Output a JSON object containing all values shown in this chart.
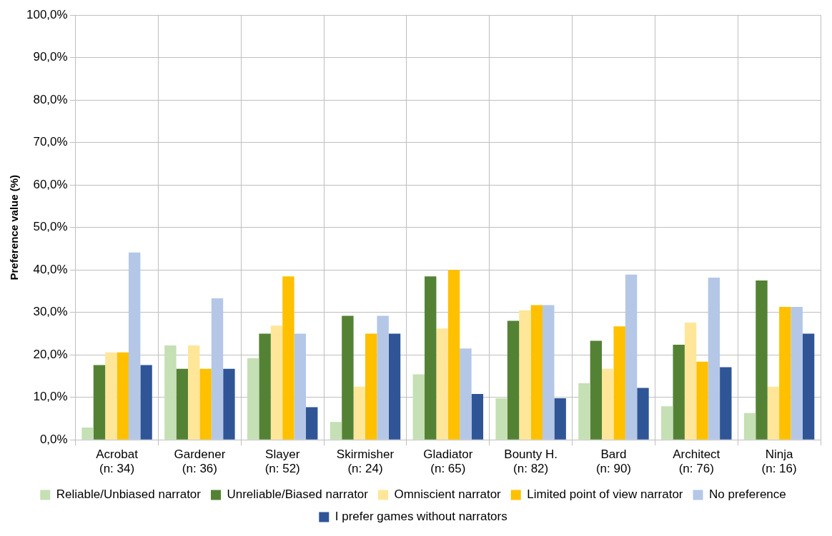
{
  "chart_data": {
    "type": "bar",
    "ylabel": "Preference value (%)",
    "categories": [
      "Acrobat\n(n: 34)",
      "Gardener\n(n: 36)",
      "Slayer\n(n: 52)",
      "Skirmisher\n(n: 24)",
      "Gladiator\n(n: 65)",
      "Bounty H.\n(n: 82)",
      "Bard\n(n: 90)",
      "Architect\n(n: 76)",
      "Ninja\n(n: 16)"
    ],
    "series": [
      {
        "name": "Reliable/Unbiased narrator",
        "color": "#c5e0b4",
        "values": [
          2.9,
          22.2,
          19.2,
          4.2,
          15.4,
          9.8,
          13.3,
          7.9,
          6.3
        ]
      },
      {
        "name": "Unreliable/Biased narrator",
        "color": "#548235",
        "values": [
          17.6,
          16.7,
          25.0,
          29.2,
          38.5,
          28.0,
          23.3,
          22.4,
          37.5
        ]
      },
      {
        "name": "Omniscient narrator",
        "color": "#ffe699",
        "values": [
          20.6,
          22.2,
          26.9,
          12.5,
          26.2,
          30.5,
          16.7,
          27.6,
          12.5
        ]
      },
      {
        "name": "Limited point of view narrator",
        "color": "#ffc000",
        "values": [
          20.6,
          16.7,
          38.5,
          25.0,
          40.0,
          31.7,
          26.7,
          18.4,
          31.3
        ]
      },
      {
        "name": "No preference",
        "color": "#b4c7e7",
        "values": [
          44.1,
          33.3,
          25.0,
          29.2,
          21.5,
          31.7,
          38.9,
          38.2,
          31.3
        ]
      },
      {
        "name": "I prefer games without narrators",
        "color": "#2f5597",
        "values": [
          17.6,
          16.7,
          7.7,
          25.0,
          10.8,
          9.8,
          12.2,
          17.1,
          25.0
        ]
      }
    ],
    "ylim": [
      0,
      100
    ],
    "yticks": [
      {
        "value": 0,
        "label": "0,0%"
      },
      {
        "value": 10,
        "label": "10,0%"
      },
      {
        "value": 20,
        "label": "20,0%"
      },
      {
        "value": 30,
        "label": "30,0%"
      },
      {
        "value": 40,
        "label": "40,0%"
      },
      {
        "value": 50,
        "label": "50,0%"
      },
      {
        "value": 60,
        "label": "60,0%"
      },
      {
        "value": 70,
        "label": "70,0%"
      },
      {
        "value": 80,
        "label": "80,0%"
      },
      {
        "value": 90,
        "label": "90,0%"
      },
      {
        "value": 100,
        "label": "100,0%"
      }
    ],
    "grid": true,
    "legend": "bottom"
  }
}
